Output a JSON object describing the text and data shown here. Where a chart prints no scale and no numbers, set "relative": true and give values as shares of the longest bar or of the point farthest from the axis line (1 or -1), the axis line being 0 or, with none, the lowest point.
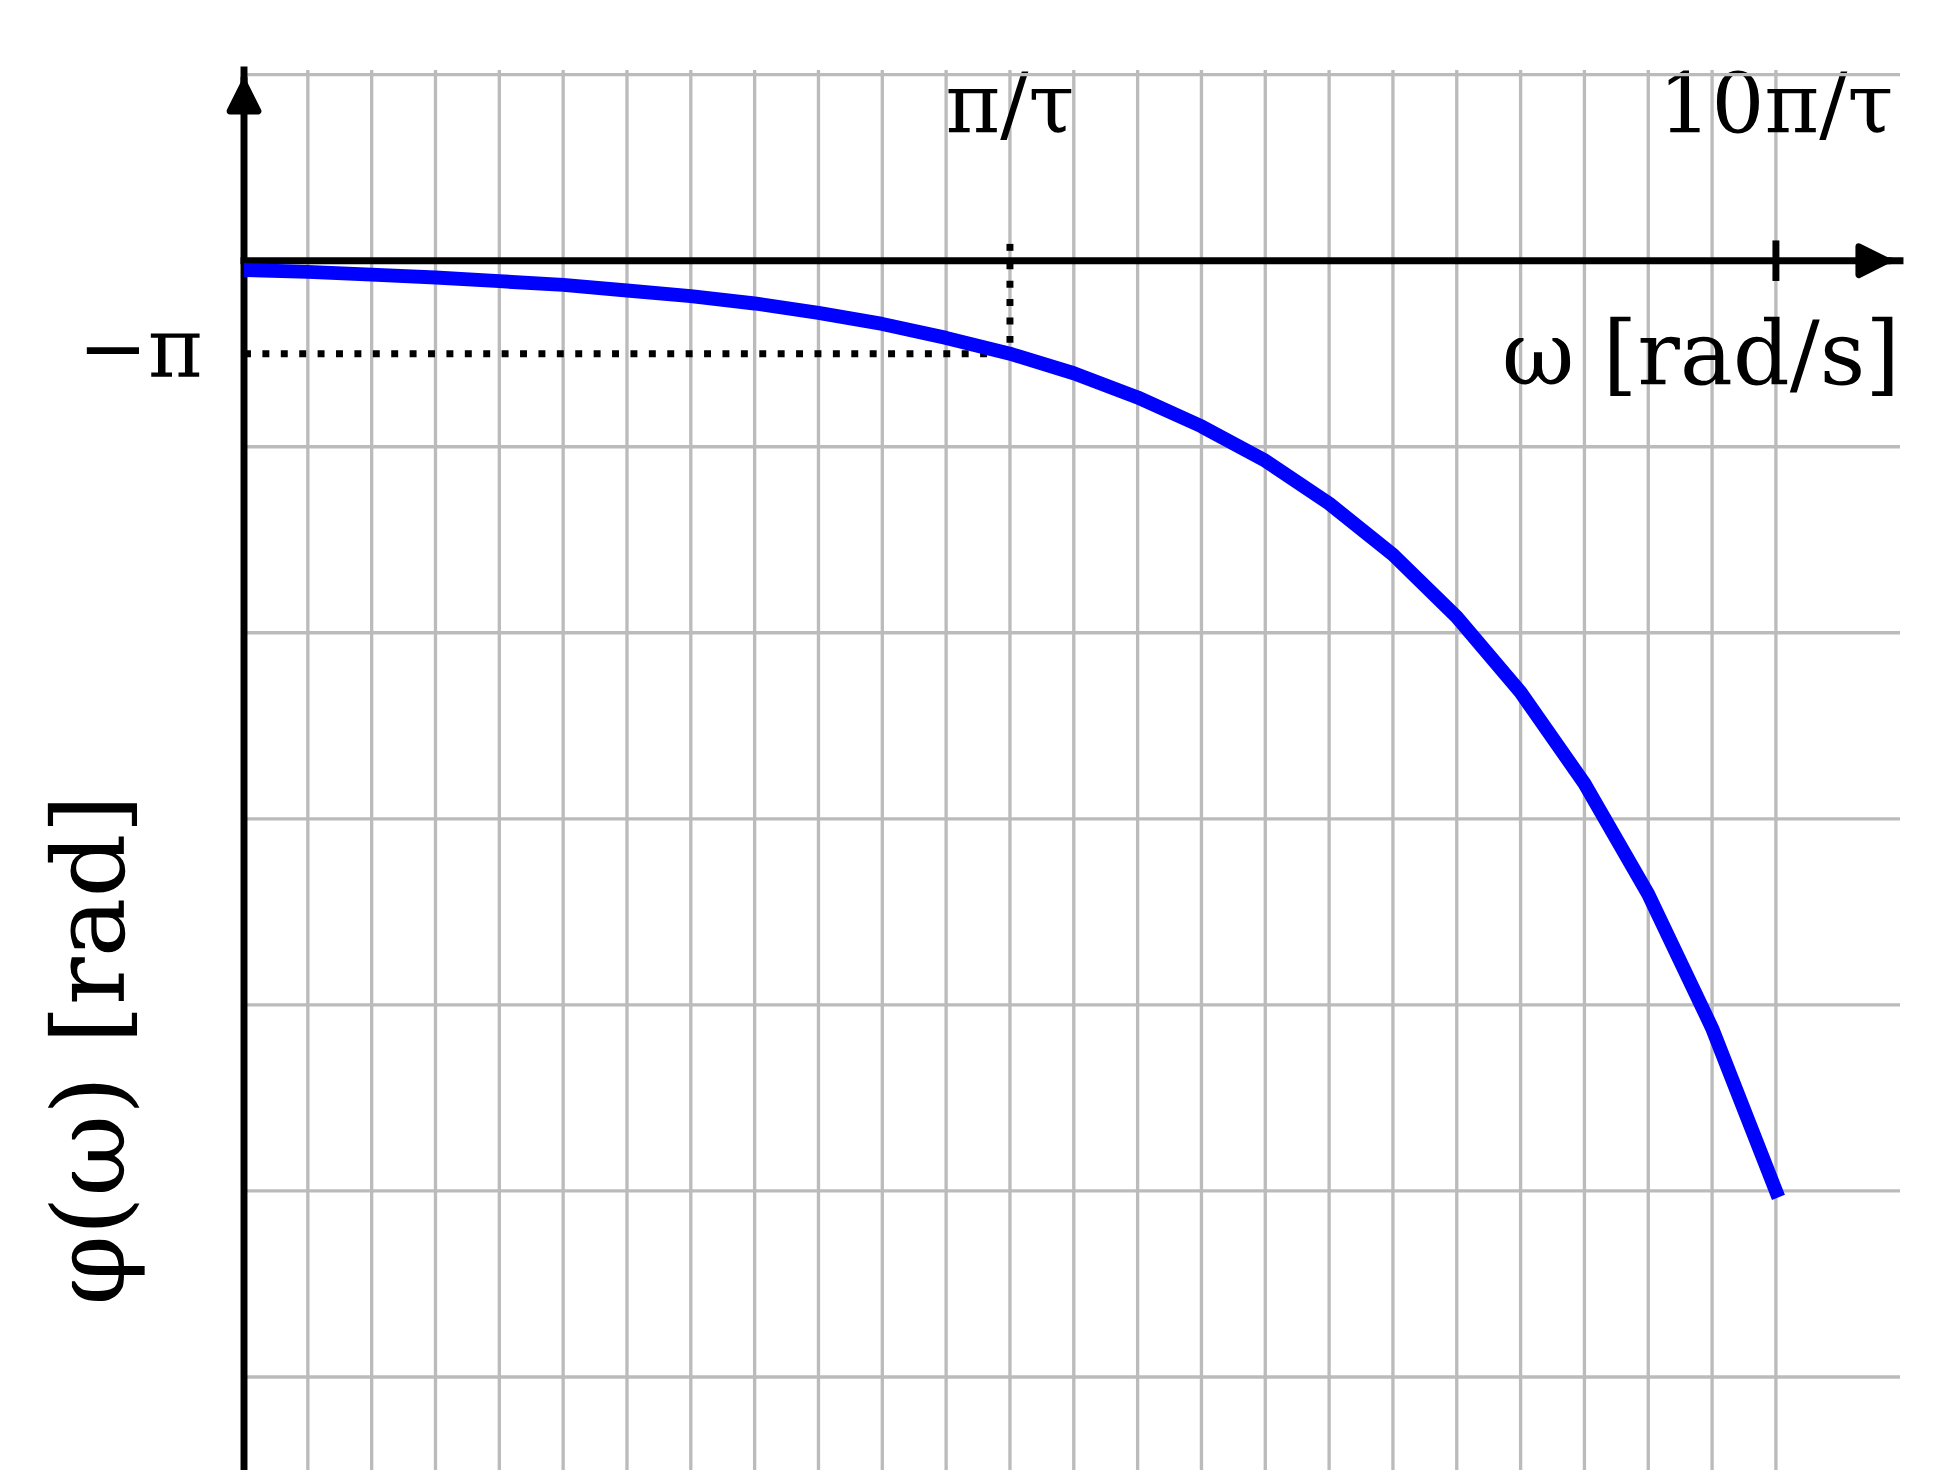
{
  "chart_data": {
    "type": "line",
    "xlabel": "ω [rad/s]",
    "ylabel": "φ(ω) [rad]",
    "relative": true,
    "categories": [
      null,
      null,
      null,
      null,
      null,
      null,
      null,
      null,
      null,
      null,
      null,
      null,
      "π/τ",
      null,
      null,
      null,
      null,
      null,
      null,
      null,
      null,
      null,
      null,
      null,
      "10π/τ"
    ],
    "series": [
      {
        "color": "#0000ff",
        "values": [
          -0.01,
          -0.012,
          -0.015,
          -0.018,
          -0.022,
          -0.026,
          -0.032,
          -0.038,
          -0.046,
          -0.056,
          -0.068,
          -0.083,
          -0.1,
          -0.121,
          -0.147,
          -0.178,
          -0.215,
          -0.261,
          -0.316,
          -0.383,
          -0.464,
          -0.562,
          -0.681,
          -0.825,
          -1
        ]
      }
    ],
    "grid": true,
    "line_style": "solid",
    "marker": "none",
    "ref_lines": [
      {
        "axis": "x",
        "value": "π/τ",
        "line_style": "dotted",
        "color": "#000000"
      },
      {
        "axis": "y",
        "value": -0.1,
        "label": "−π",
        "line_style": "dotted",
        "color": "#000000"
      }
    ]
  }
}
